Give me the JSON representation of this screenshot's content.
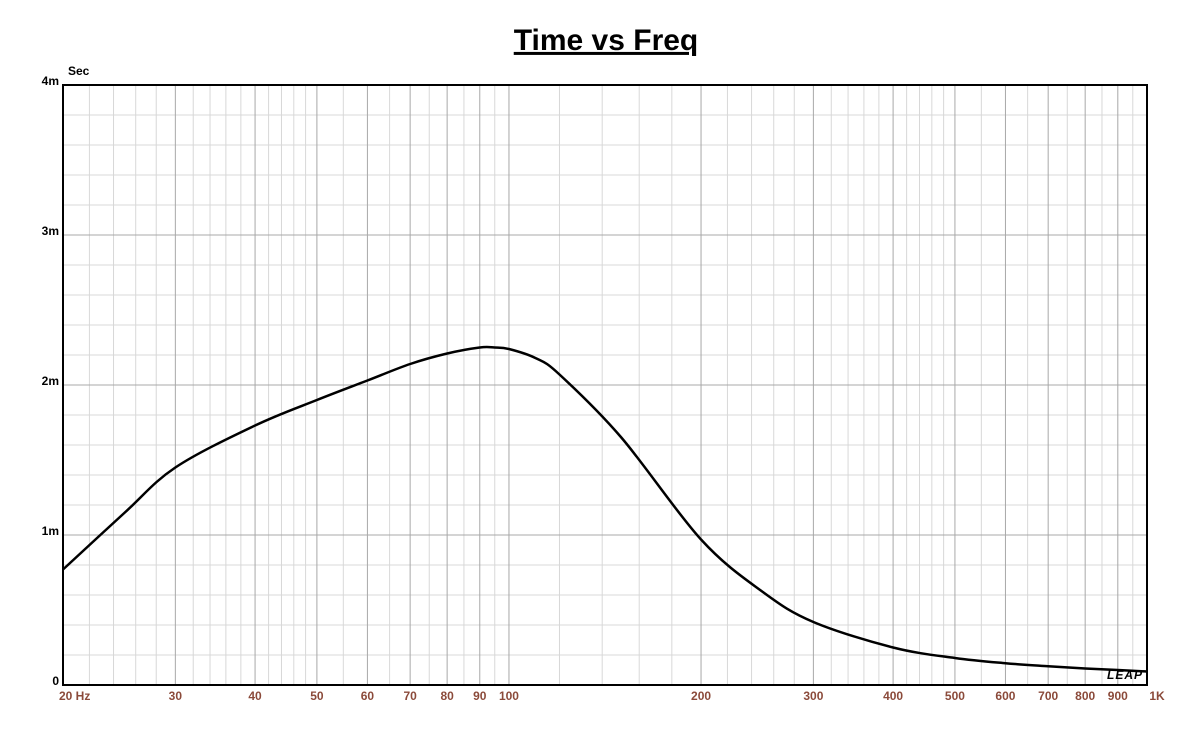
{
  "chart_data": {
    "type": "line",
    "title": "Time vs Freq",
    "y_label": "Sec",
    "watermark": "LEAP",
    "x_scale": "log",
    "grid": true,
    "xlim": [
      20,
      1000
    ],
    "ylim": [
      0,
      0.004
    ],
    "xticks": [
      {
        "value": 20,
        "label": "20  Hz"
      },
      30,
      40,
      50,
      60,
      70,
      80,
      90,
      100,
      200,
      300,
      400,
      500,
      600,
      700,
      800,
      900,
      {
        "value": 1000,
        "label": "1K"
      }
    ],
    "x_minor_ticks": [
      22,
      24,
      26,
      28,
      32,
      34,
      36,
      38,
      42,
      44,
      46,
      48,
      55,
      65,
      75,
      85,
      95,
      120,
      140,
      160,
      180,
      220,
      240,
      260,
      280,
      320,
      340,
      360,
      380,
      420,
      440,
      460,
      480,
      550,
      650,
      750,
      850,
      950
    ],
    "yticks": [
      {
        "value": 0,
        "label": "0"
      },
      {
        "value": 0.001,
        "label": "1m"
      },
      {
        "value": 0.002,
        "label": "2m"
      },
      {
        "value": 0.003,
        "label": "3m"
      },
      {
        "value": 0.004,
        "label": "4m"
      }
    ],
    "y_minor_ticks": [
      0.0002,
      0.0004,
      0.0006,
      0.0008,
      0.0012,
      0.0014,
      0.0016,
      0.0018,
      0.0022,
      0.0024,
      0.0026,
      0.0028,
      0.0032,
      0.0034,
      0.0036,
      0.0038
    ],
    "x": [
      20,
      25,
      30,
      40,
      50,
      60,
      70,
      80,
      90,
      95,
      100,
      110,
      120,
      150,
      200,
      250,
      300,
      400,
      500,
      600,
      700,
      800,
      900,
      1000
    ],
    "series": [
      {
        "color": "#000000",
        "values": [
          0.00077,
          0.00115,
          0.00145,
          0.00173,
          0.0019,
          0.00203,
          0.00214,
          0.00221,
          0.00225,
          0.00225,
          0.00224,
          0.00218,
          0.00207,
          0.00165,
          0.00097,
          0.00062,
          0.00042,
          0.00025,
          0.00018,
          0.000145,
          0.000125,
          0.00011,
          0.0001,
          9e-05
        ]
      }
    ]
  }
}
